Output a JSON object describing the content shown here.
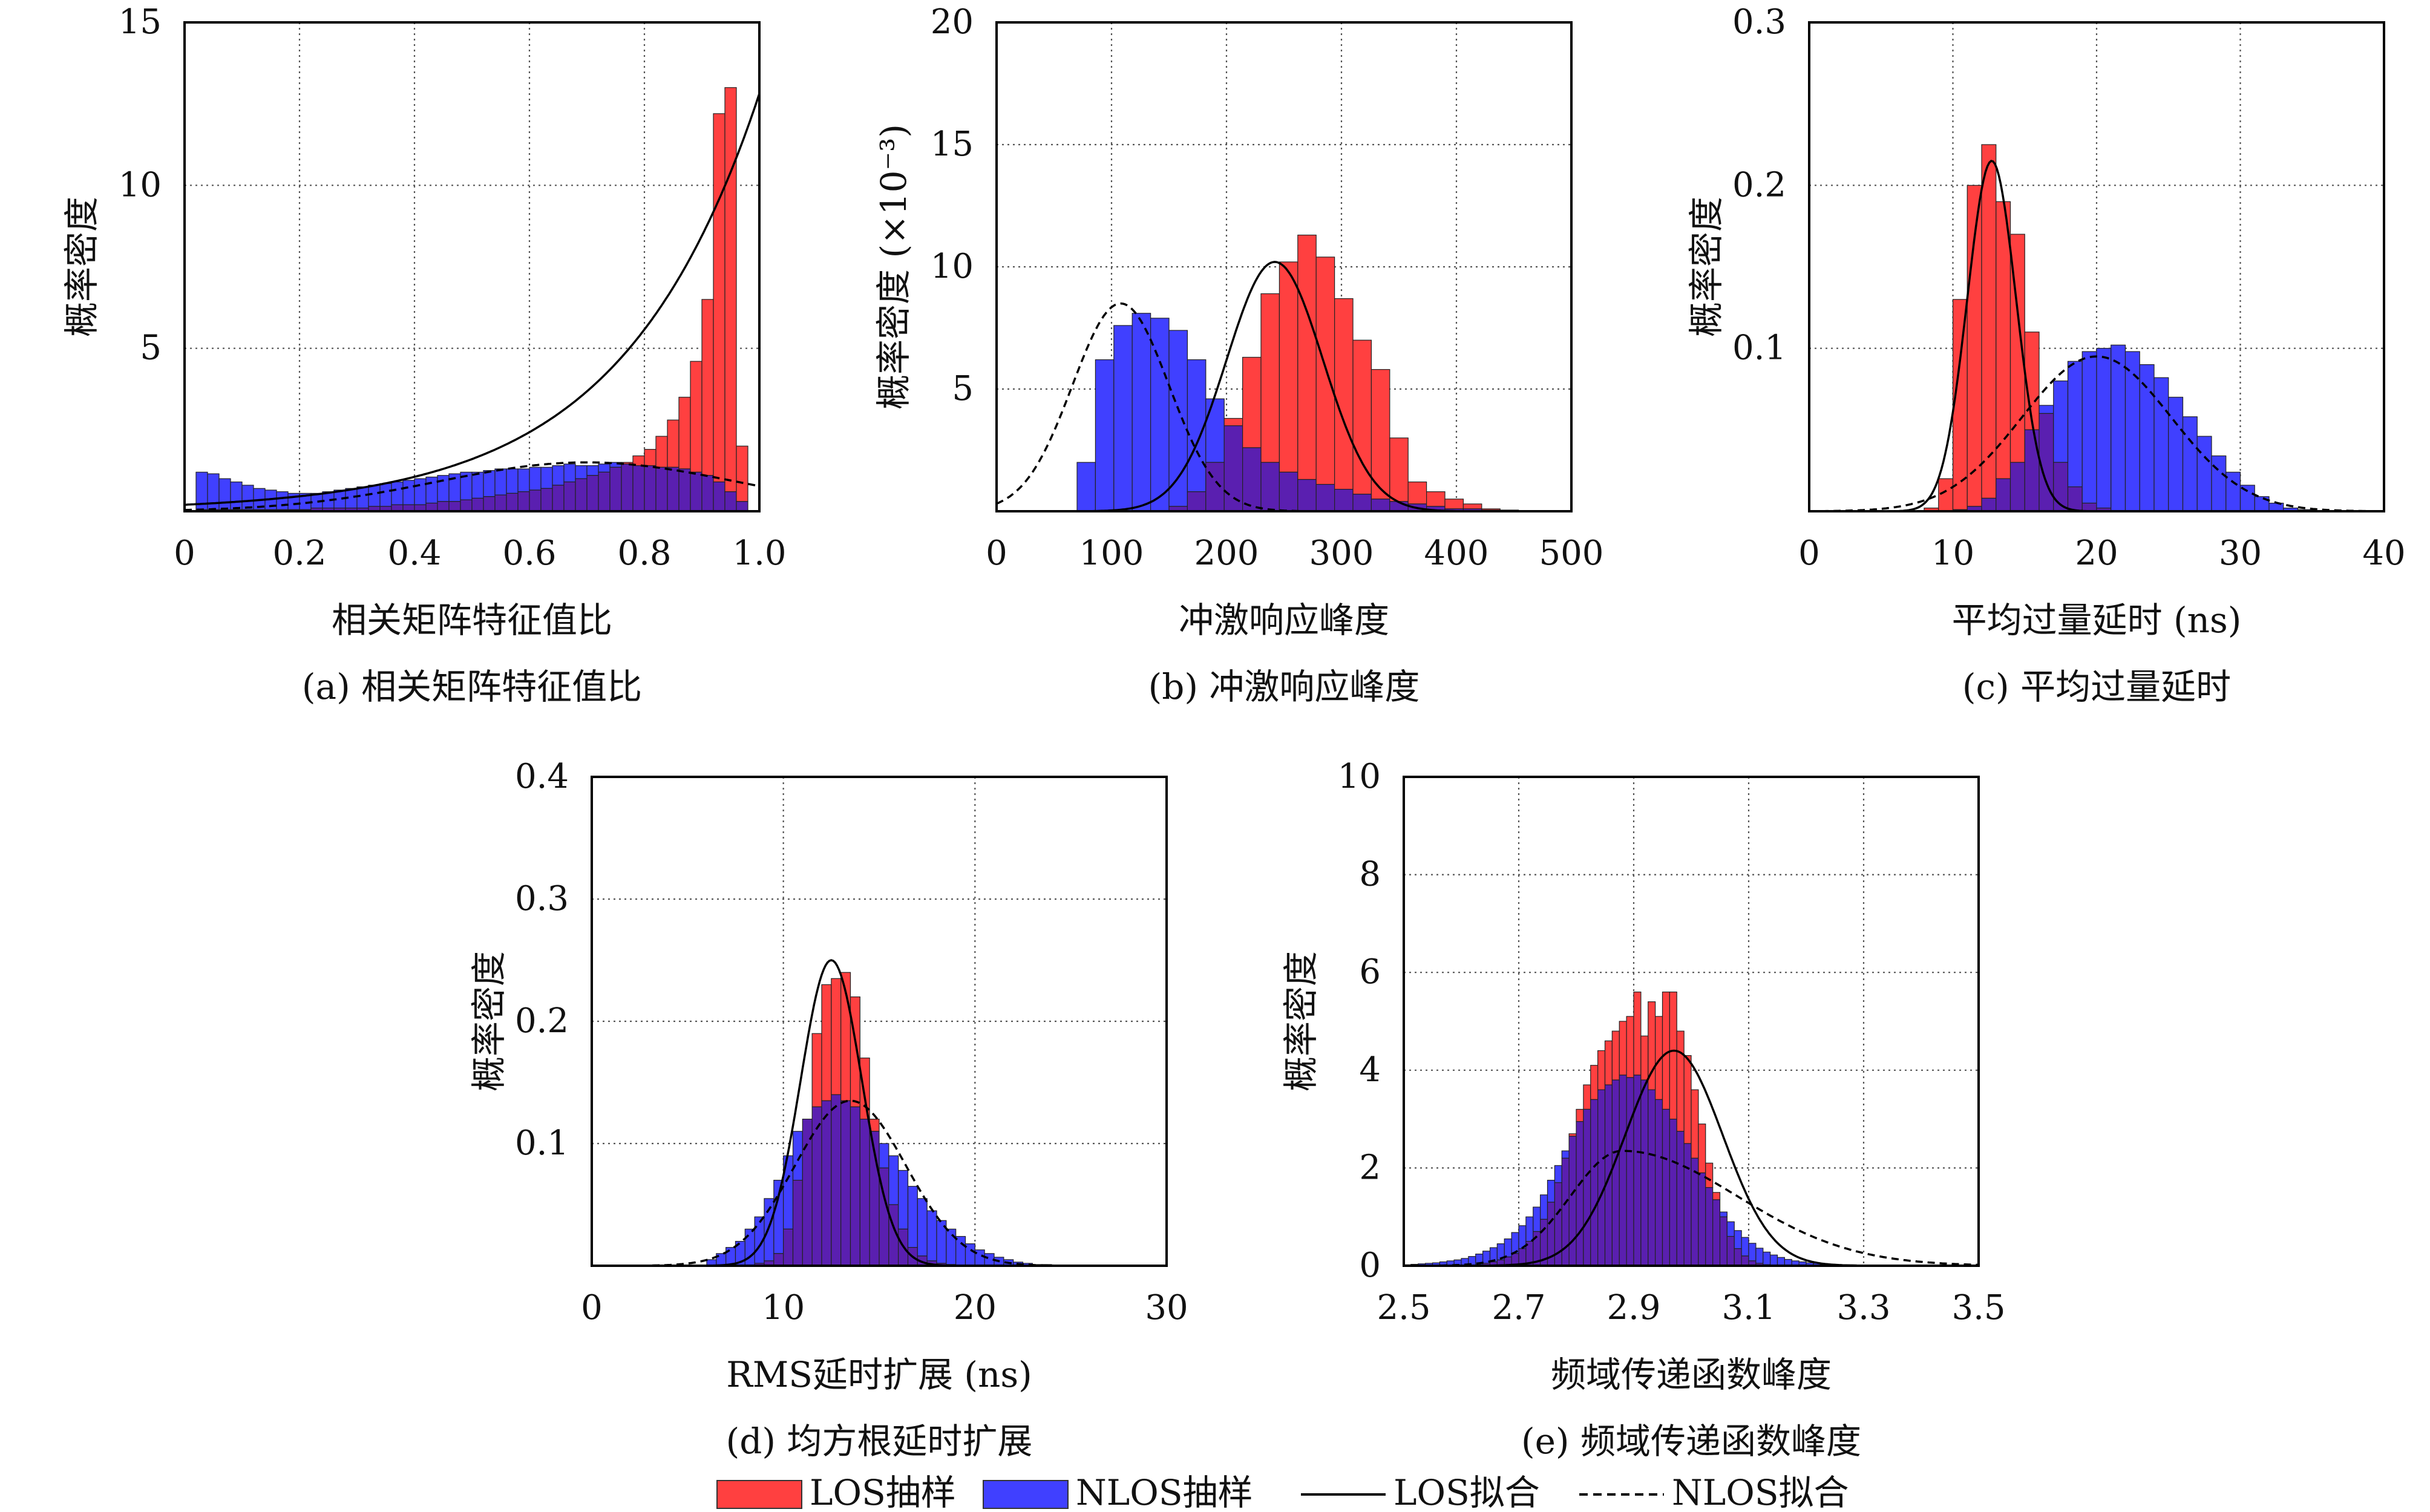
{
  "colors": {
    "los": "#ff4040",
    "nlos": "#4040ff",
    "overlap": "#5a1fb0",
    "fit": "#000000"
  },
  "legend": {
    "los_sample": "LOS抽样",
    "nlos_sample": "NLOS抽样",
    "los_fit": "LOS拟合",
    "nlos_fit": "NLOS拟合"
  },
  "chart_data": [
    {
      "type": "bar",
      "caption": "(a) 相关矩阵特征值比",
      "xlabel": "相关矩阵特征值比",
      "ylabel": "概率密度",
      "xlim": [
        0,
        1.0
      ],
      "ylim": [
        0,
        15
      ],
      "xticks": [
        0,
        0.2,
        0.4,
        0.6,
        0.8,
        1.0
      ],
      "xtick_labels": [
        "0",
        "0.2",
        "0.4",
        "0.6",
        "0.8",
        "1.0"
      ],
      "yticks": [
        5,
        10,
        15
      ],
      "ytick_labels": [
        "5",
        "10",
        "15"
      ],
      "show_y0": false,
      "grid": true,
      "bin_start": 0.02,
      "bin_width": 0.02,
      "series": [
        {
          "name": "LOS抽样",
          "values": [
            0.05,
            0.05,
            0.05,
            0.05,
            0.05,
            0.05,
            0.05,
            0.05,
            0.05,
            0.05,
            0.1,
            0.1,
            0.1,
            0.1,
            0.1,
            0.15,
            0.15,
            0.2,
            0.2,
            0.2,
            0.25,
            0.3,
            0.3,
            0.35,
            0.4,
            0.45,
            0.5,
            0.55,
            0.6,
            0.65,
            0.7,
            0.8,
            0.9,
            1.0,
            1.1,
            1.2,
            1.35,
            1.5,
            1.7,
            1.9,
            2.3,
            2.8,
            3.5,
            4.6,
            6.5,
            12.2,
            13.0,
            2.0
          ]
        },
        {
          "name": "NLOS抽样",
          "values": [
            1.2,
            1.15,
            1.0,
            0.9,
            0.8,
            0.7,
            0.65,
            0.6,
            0.55,
            0.55,
            0.55,
            0.6,
            0.65,
            0.7,
            0.75,
            0.8,
            0.85,
            0.9,
            0.95,
            1.0,
            1.05,
            1.1,
            1.15,
            1.2,
            1.2,
            1.25,
            1.3,
            1.3,
            1.3,
            1.35,
            1.35,
            1.4,
            1.45,
            1.4,
            1.4,
            1.45,
            1.5,
            1.45,
            1.4,
            1.4,
            1.35,
            1.35,
            1.3,
            1.2,
            1.1,
            0.9,
            0.6,
            0.3
          ]
        },
        {
          "name": "LOS拟合",
          "curve": "exp",
          "params": {
            "a": 0.2,
            "b": 4.16,
            "c": 0.99
          }
        },
        {
          "name": "NLOS拟合",
          "curve": "gauss",
          "params": {
            "amp": 1.5,
            "mu": 0.7,
            "sigma": 0.26
          }
        }
      ]
    },
    {
      "type": "bar",
      "caption": "(b) 冲激响应峰度",
      "xlabel": "冲激响应峰度",
      "ylabel": "概率密度 (×10⁻³)",
      "xlim": [
        0,
        500
      ],
      "ylim": [
        0,
        20
      ],
      "xticks": [
        0,
        100,
        200,
        300,
        400,
        500
      ],
      "xtick_labels": [
        "0",
        "100",
        "200",
        "300",
        "400",
        "500"
      ],
      "yticks": [
        5,
        10,
        15,
        20
      ],
      "ytick_labels": [
        "5",
        "10",
        "15",
        "20"
      ],
      "show_y0": false,
      "grid": true,
      "bin_start": 70,
      "bin_width": 16,
      "series": [
        {
          "name": "LOS抽样",
          "values": [
            0,
            0,
            0,
            0,
            0,
            0.2,
            0.8,
            2.0,
            3.8,
            6.3,
            8.9,
            10.2,
            11.3,
            10.4,
            8.7,
            7.0,
            5.8,
            3.0,
            1.2,
            0.8,
            0.5,
            0.3,
            0.1,
            0.05
          ]
        },
        {
          "name": "NLOS抽样",
          "values": [
            2.0,
            6.2,
            7.6,
            8.1,
            7.9,
            7.4,
            6.2,
            4.6,
            3.5,
            2.6,
            2.0,
            1.6,
            1.3,
            1.1,
            0.9,
            0.7,
            0.5,
            0.4,
            0.3,
            0.2,
            0.1,
            0.1,
            0.05,
            0.05
          ]
        },
        {
          "name": "LOS拟合",
          "curve": "gauss",
          "params": {
            "amp": 10.2,
            "mu": 242,
            "sigma": 42
          }
        },
        {
          "name": "NLOS拟合",
          "curve": "gauss",
          "params": {
            "amp": 8.5,
            "mu": 108,
            "sigma": 42
          }
        }
      ]
    },
    {
      "type": "bar",
      "caption": "(c) 平均过量延时",
      "xlabel": "平均过量延时 (ns)",
      "ylabel": "概率密度",
      "xlim": [
        0,
        40
      ],
      "ylim": [
        0,
        0.3
      ],
      "xticks": [
        0,
        10,
        20,
        30,
        40
      ],
      "xtick_labels": [
        "0",
        "10",
        "20",
        "30",
        "40"
      ],
      "yticks": [
        0.1,
        0.2,
        0.3
      ],
      "ytick_labels": [
        "0.1",
        "0.2",
        "0.3"
      ],
      "show_y0": false,
      "grid": true,
      "bin_start": 8,
      "bin_width": 1,
      "series": [
        {
          "name": "LOS抽样",
          "values": [
            0.002,
            0.02,
            0.13,
            0.2,
            0.225,
            0.19,
            0.17,
            0.11,
            0.06,
            0.03,
            0.015,
            0.005,
            0.002,
            0,
            0,
            0,
            0,
            0,
            0,
            0,
            0,
            0,
            0,
            0,
            0,
            0,
            0
          ]
        },
        {
          "name": "NLOS抽样",
          "values": [
            0,
            0,
            0.001,
            0.003,
            0.008,
            0.02,
            0.03,
            0.05,
            0.065,
            0.08,
            0.092,
            0.098,
            0.1,
            0.102,
            0.098,
            0.09,
            0.082,
            0.07,
            0.058,
            0.046,
            0.034,
            0.024,
            0.016,
            0.009,
            0.005,
            0.002,
            0.001
          ]
        },
        {
          "name": "LOS拟合",
          "curve": "gauss",
          "params": {
            "amp": 0.215,
            "mu": 12.7,
            "sigma": 1.7
          }
        },
        {
          "name": "NLOS拟合",
          "curve": "gauss",
          "params": {
            "amp": 0.095,
            "mu": 20,
            "sigma": 5.2
          }
        }
      ]
    },
    {
      "type": "bar",
      "caption": "(d) 均方根延时扩展",
      "xlabel": "RMS延时扩展 (ns)",
      "ylabel": "概率密度",
      "xlim": [
        0,
        30
      ],
      "ylim": [
        0,
        0.4
      ],
      "xticks": [
        0,
        10,
        20,
        30
      ],
      "xtick_labels": [
        "0",
        "10",
        "20",
        "30"
      ],
      "yticks": [
        0.1,
        0.2,
        0.3,
        0.4
      ],
      "ytick_labels": [
        "0.1",
        "0.2",
        "0.3",
        "0.4"
      ],
      "show_y0": false,
      "grid": true,
      "bin_start": 6,
      "bin_width": 0.5,
      "series": [
        {
          "name": "LOS抽样",
          "values": [
            0,
            0,
            0,
            0,
            0,
            0.002,
            0.004,
            0.01,
            0.03,
            0.07,
            0.12,
            0.19,
            0.23,
            0.235,
            0.24,
            0.22,
            0.17,
            0.12,
            0.08,
            0.05,
            0.03,
            0.015,
            0.008,
            0.004,
            0.002,
            0.001,
            0,
            0,
            0,
            0,
            0,
            0,
            0,
            0,
            0,
            0
          ]
        },
        {
          "name": "NLOS抽样",
          "values": [
            0.005,
            0.01,
            0.015,
            0.02,
            0.03,
            0.04,
            0.055,
            0.07,
            0.09,
            0.11,
            0.12,
            0.13,
            0.135,
            0.14,
            0.135,
            0.13,
            0.12,
            0.11,
            0.1,
            0.09,
            0.078,
            0.065,
            0.055,
            0.045,
            0.037,
            0.03,
            0.024,
            0.018,
            0.013,
            0.01,
            0.007,
            0.005,
            0.003,
            0.002,
            0.001,
            0.001
          ]
        },
        {
          "name": "LOS拟合",
          "curve": "gauss",
          "params": {
            "amp": 0.25,
            "mu": 12.5,
            "sigma": 1.6
          }
        },
        {
          "name": "NLOS拟合",
          "curve": "gauss",
          "params": {
            "amp": 0.135,
            "mu": 13.5,
            "sigma": 2.9
          }
        }
      ]
    },
    {
      "type": "bar",
      "caption": "(e) 频域传递函数峰度",
      "xlabel": "频域传递函数峰度",
      "ylabel": "概率密度",
      "xlim": [
        2.5,
        3.5
      ],
      "ylim": [
        0,
        10
      ],
      "xticks": [
        2.5,
        2.7,
        2.9,
        3.1,
        3.3,
        3.5
      ],
      "xtick_labels": [
        "2.5",
        "2.7",
        "2.9",
        "3.1",
        "3.3",
        "3.5"
      ],
      "yticks": [
        0,
        2,
        4,
        6,
        8,
        10
      ],
      "ytick_labels": [
        "0",
        "2",
        "4",
        "6",
        "8",
        "10"
      ],
      "show_y0": true,
      "grid": true,
      "bin_start": 2.5,
      "bin_width": 0.0125,
      "series": [
        {
          "name": "LOS抽样",
          "values": [
            0,
            0,
            0,
            0,
            0,
            0,
            0,
            0,
            0,
            0,
            0.02,
            0.05,
            0.08,
            0.12,
            0.18,
            0.25,
            0.35,
            0.5,
            0.7,
            0.95,
            1.3,
            1.7,
            2.2,
            2.7,
            3.2,
            3.7,
            4.1,
            4.4,
            4.6,
            4.8,
            5.0,
            5.1,
            5.6,
            4.7,
            5.4,
            5.1,
            5.6,
            5.6,
            4.8,
            4.3,
            3.6,
            2.9,
            2.1,
            1.5,
            1.0,
            0.6,
            0.35,
            0.2,
            0.1,
            0.05,
            0.02,
            0,
            0,
            0,
            0,
            0,
            0,
            0,
            0,
            0,
            0,
            0,
            0,
            0,
            0,
            0,
            0,
            0,
            0,
            0,
            0,
            0,
            0,
            0,
            0,
            0,
            0,
            0,
            0,
            0
          ]
        },
        {
          "name": "NLOS抽样",
          "values": [
            0.02,
            0.03,
            0.04,
            0.05,
            0.06,
            0.08,
            0.1,
            0.12,
            0.15,
            0.19,
            0.24,
            0.3,
            0.37,
            0.45,
            0.55,
            0.68,
            0.82,
            1.0,
            1.2,
            1.45,
            1.75,
            2.05,
            2.35,
            2.65,
            2.95,
            3.2,
            3.4,
            3.6,
            3.7,
            3.8,
            3.9,
            3.85,
            3.9,
            3.8,
            3.6,
            3.4,
            3.2,
            3.0,
            2.75,
            2.5,
            2.2,
            1.9,
            1.6,
            1.35,
            1.1,
            0.9,
            0.72,
            0.58,
            0.46,
            0.36,
            0.28,
            0.22,
            0.17,
            0.13,
            0.1,
            0.08,
            0.06,
            0.05,
            0.04,
            0.03,
            0.02,
            0.02,
            0.02,
            0.01,
            0.01,
            0.01,
            0.01,
            0.01,
            0.01,
            0.01,
            0.01,
            0.01,
            0.01,
            0.01,
            0.01,
            0.01,
            0.01,
            0.01,
            0.01,
            0.01
          ]
        },
        {
          "name": "LOS拟合",
          "curve": "gauss",
          "params": {
            "amp": 4.4,
            "mu": 2.97,
            "sigma": 0.085
          }
        },
        {
          "name": "NLOS拟合",
          "curve": "skew",
          "params": {
            "amp": 2.35,
            "mu": 2.88,
            "sigmaL": 0.09,
            "sigmaR": 0.2
          }
        }
      ]
    }
  ]
}
